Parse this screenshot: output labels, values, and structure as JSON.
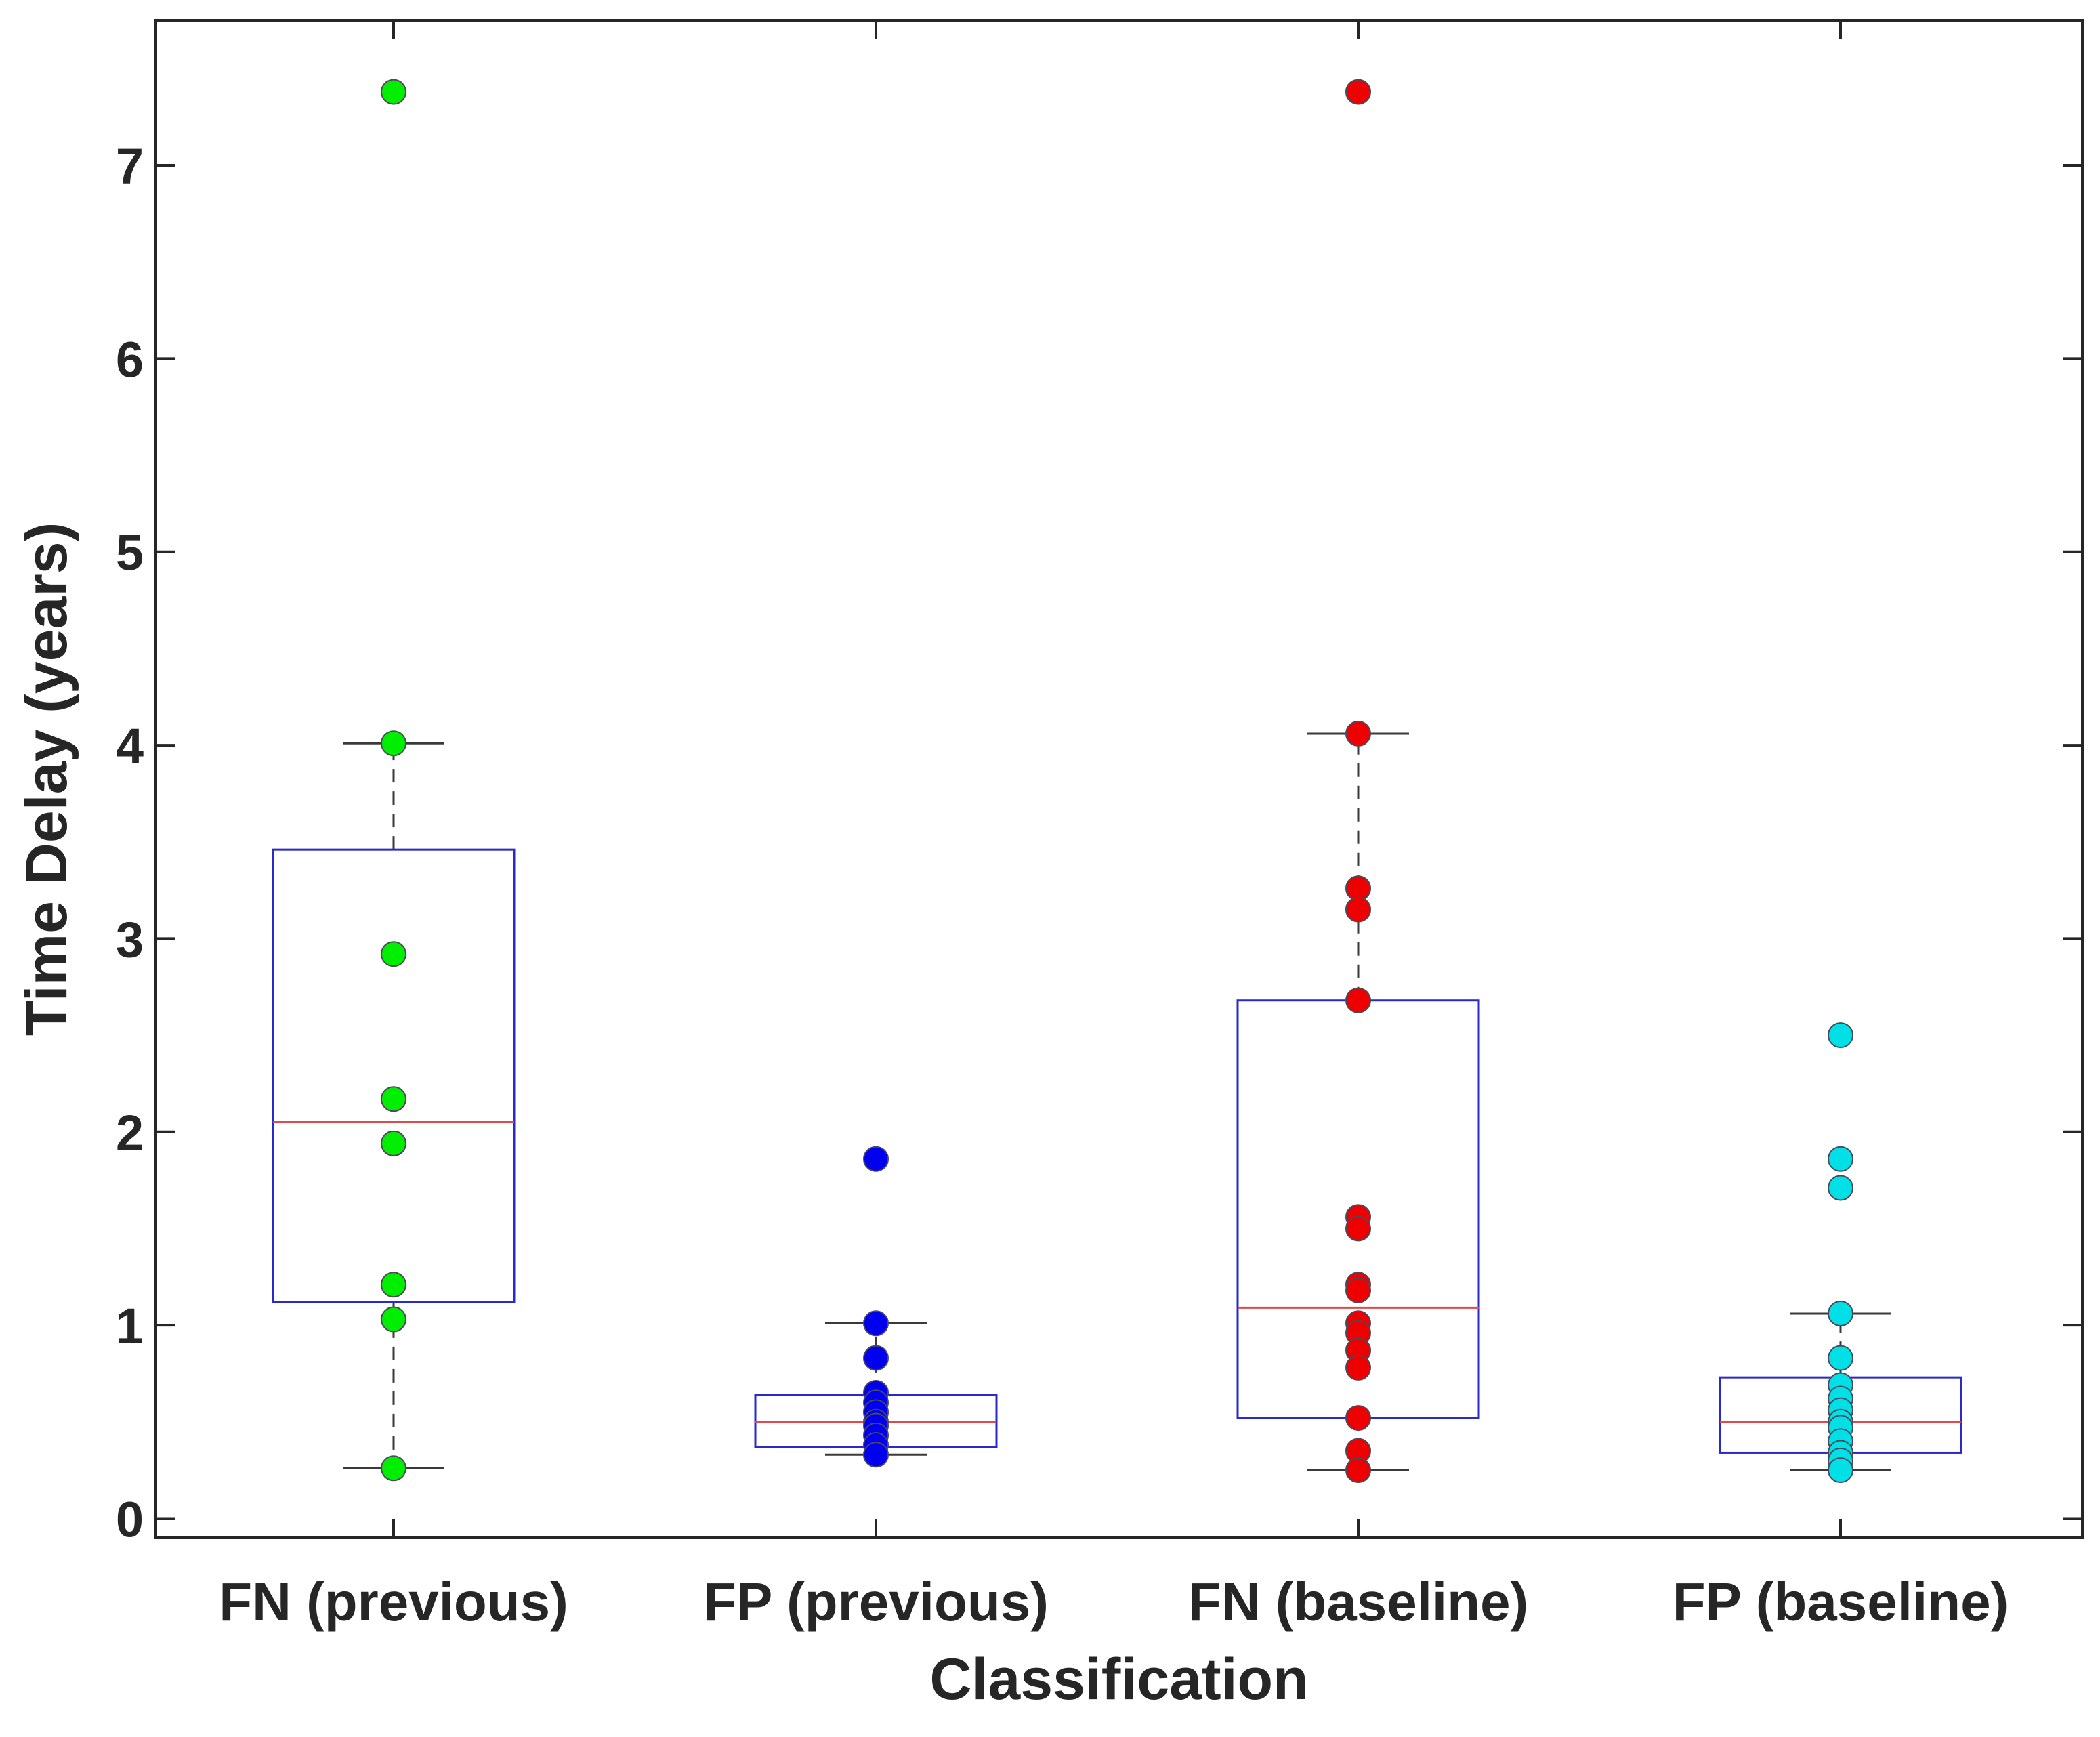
{
  "chart_data": {
    "type": "boxplot",
    "title": "",
    "xlabel": "Classification",
    "ylabel": "Time Delay (years)",
    "ylim": [
      -0.1,
      7.75
    ],
    "yticks": [
      0,
      1,
      2,
      3,
      4,
      5,
      6,
      7
    ],
    "ytick_labels": [
      "0",
      "1",
      "2",
      "3",
      "4",
      "5",
      "6",
      "7"
    ],
    "grid": false,
    "categories": [
      "FN (previous)",
      "FP (previous)",
      "FN (baseline)",
      "FP (baseline)"
    ],
    "series": [
      {
        "name": "FN (previous)",
        "color": "#00ee00",
        "q1": 1.12,
        "median": 2.05,
        "q3": 3.46,
        "whisker_low": 0.26,
        "whisker_high": 4.01,
        "points": [
          7.38,
          4.01,
          2.92,
          2.17,
          1.94,
          1.94,
          1.21,
          1.03,
          0.26
        ]
      },
      {
        "name": "FP (previous)",
        "color": "#0000ee",
        "q1": 0.37,
        "median": 0.5,
        "q3": 0.64,
        "whisker_low": 0.33,
        "whisker_high": 1.01,
        "points": [
          1.86,
          1.01,
          0.83,
          0.65,
          0.6,
          0.55,
          0.5,
          0.48,
          0.43,
          0.38,
          0.33
        ]
      },
      {
        "name": "FN (baseline)",
        "color": "#ee0000",
        "q1": 0.52,
        "median": 1.09,
        "q3": 2.68,
        "whisker_low": 0.25,
        "whisker_high": 4.06,
        "points": [
          7.38,
          4.06,
          3.26,
          3.15,
          2.68,
          1.56,
          1.5,
          1.21,
          1.18,
          1.01,
          0.96,
          0.87,
          0.78,
          0.52,
          0.35,
          0.25
        ]
      },
      {
        "name": "FP (baseline)",
        "color": "#00e0e6",
        "q1": 0.34,
        "median": 0.5,
        "q3": 0.73,
        "whisker_low": 0.25,
        "whisker_high": 1.06,
        "points": [
          2.5,
          1.86,
          1.71,
          1.06,
          0.83,
          0.69,
          0.62,
          0.56,
          0.5,
          0.47,
          0.4,
          0.34,
          0.3,
          0.25
        ]
      }
    ]
  },
  "colors": {
    "box": "#2a2acc",
    "median": "#e04a4a",
    "whisker": "#3a3a3a",
    "axis": "#262626",
    "marker_edge": "#4a4a5a"
  }
}
